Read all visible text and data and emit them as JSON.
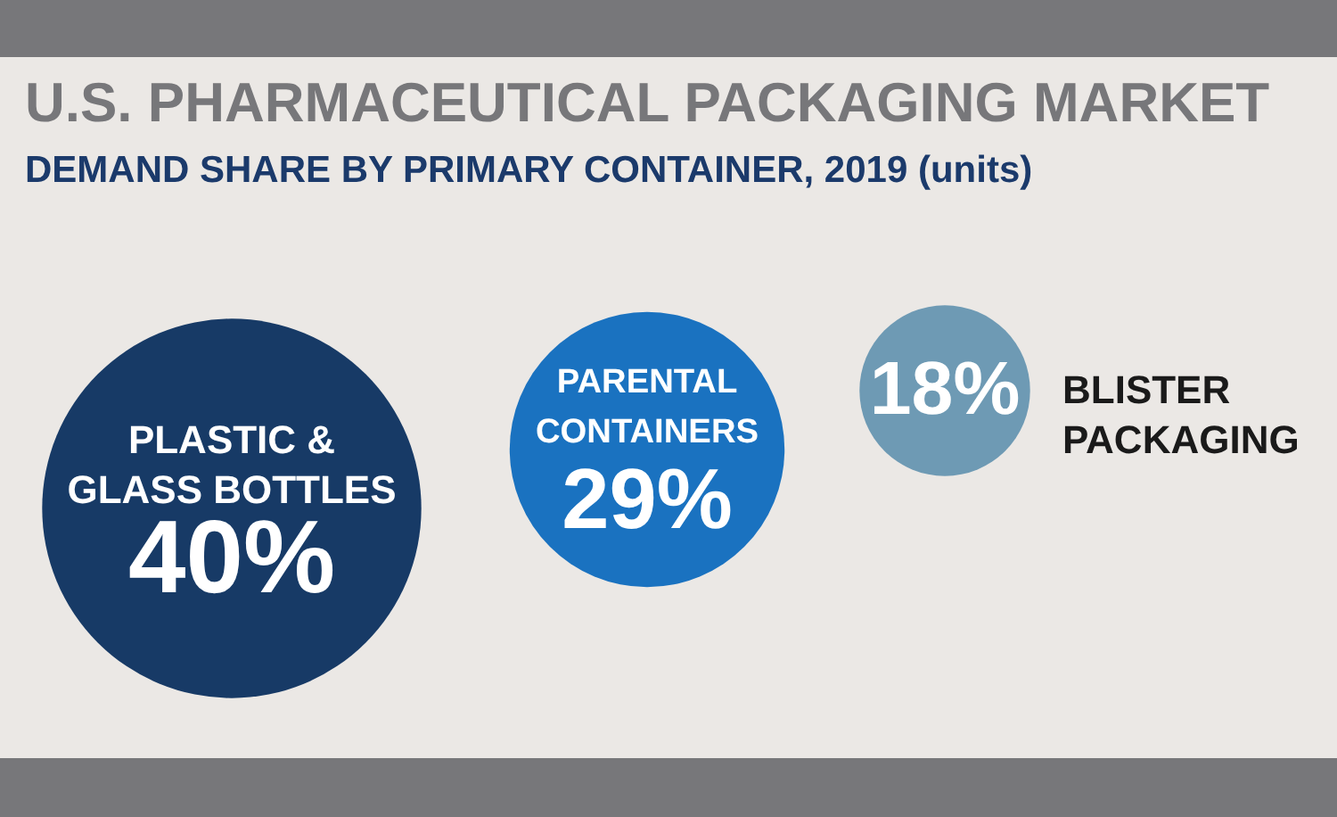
{
  "chart_data": {
    "type": "other",
    "title": "U.S. PHARMACEUTICAL PACKAGING MARKET",
    "subtitle": "DEMAND SHARE BY PRIMARY CONTAINER, 2019 (units)",
    "categories": [
      "PLASTIC & GLASS BOTTLES",
      "PARENTAL CONTAINERS",
      "BLISTER PACKAGING"
    ],
    "values": [
      40,
      29,
      18
    ],
    "value_labels": [
      "40%",
      "29%",
      "18%"
    ],
    "colors": [
      "#173a66",
      "#1a72c0",
      "#6e9ab4"
    ]
  }
}
